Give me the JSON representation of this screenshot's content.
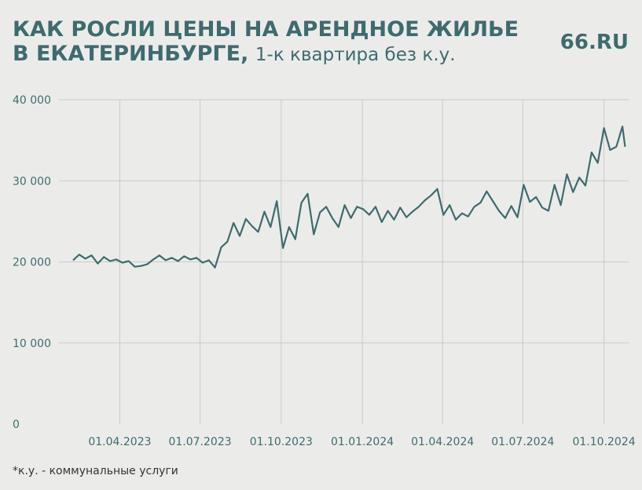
{
  "chart_data": {
    "type": "line",
    "title": [
      "КАК РОСЛИ ЦЕНЫ НА АРЕНДНОЕ ЖИЛЬЕ",
      "В ЕКАТЕРИНБУРГЕ,"
    ],
    "subtitle": "1-к квартира без к.у.",
    "brand": "66.RU",
    "footnote": "*к.у. - коммунальные услуги",
    "color": "#3e6b6e",
    "grid": true,
    "x": [
      "07.02.2023",
      "14.02.2023",
      "21.02.2023",
      "28.02.2023",
      "07.03.2023",
      "14.03.2023",
      "21.03.2023",
      "28.03.2023",
      "04.04.2023",
      "11.04.2023",
      "18.04.2023",
      "25.04.2023",
      "02.05.2023",
      "09.05.2023",
      "16.05.2023",
      "23.05.2023",
      "30.05.2023",
      "06.06.2023",
      "13.06.2023",
      "20.06.2023",
      "27.06.2023",
      "04.07.2023",
      "11.07.2023",
      "18.07.2023",
      "25.07.2023",
      "01.08.2023",
      "08.08.2023",
      "15.08.2023",
      "22.08.2023",
      "29.08.2023",
      "05.09.2023",
      "12.09.2023",
      "19.09.2023",
      "26.09.2023",
      "03.10.2023",
      "10.10.2023",
      "17.10.2023",
      "24.10.2023",
      "31.10.2023",
      "07.11.2023",
      "14.11.2023",
      "21.11.2023",
      "28.11.2023",
      "05.12.2023",
      "12.12.2023",
      "19.12.2023",
      "26.12.2023",
      "02.01.2024",
      "09.01.2024",
      "16.01.2024",
      "23.01.2024",
      "30.01.2024",
      "06.02.2024",
      "13.02.2024",
      "20.02.2024",
      "27.02.2024",
      "05.03.2024",
      "12.03.2024",
      "19.03.2024",
      "26.03.2024",
      "02.04.2024",
      "09.04.2024",
      "16.04.2024",
      "23.04.2024",
      "30.04.2024",
      "07.05.2024",
      "14.05.2024",
      "21.05.2024",
      "28.05.2024",
      "04.06.2024",
      "11.06.2024",
      "18.06.2024",
      "25.06.2024",
      "02.07.2024",
      "09.07.2024",
      "16.07.2024",
      "23.07.2024",
      "30.07.2024",
      "06.08.2024",
      "13.08.2024",
      "20.08.2024",
      "27.08.2024",
      "03.09.2024",
      "10.09.2024",
      "17.09.2024",
      "24.09.2024",
      "01.10.2024",
      "08.10.2024",
      "15.10.2024",
      "22.10.2024",
      "25.10.2024"
    ],
    "values": [
      20200,
      20900,
      20400,
      20800,
      19800,
      20600,
      20100,
      20300,
      19900,
      20100,
      19400,
      19500,
      19700,
      20300,
      20800,
      20200,
      20500,
      20100,
      20700,
      20300,
      20500,
      19900,
      20200,
      19300,
      21800,
      22500,
      24800,
      23200,
      25300,
      24400,
      23700,
      26200,
      24300,
      27500,
      21700,
      24300,
      22800,
      27300,
      28400,
      23400,
      26100,
      26800,
      25400,
      24300,
      27000,
      25400,
      26800,
      26500,
      25800,
      26800,
      24900,
      26300,
      25200,
      26700,
      25500,
      26200,
      26800,
      27600,
      28200,
      29000,
      25800,
      27000,
      25200,
      26000,
      25600,
      26800,
      27300,
      28700,
      27500,
      26300,
      25400,
      26900,
      25500,
      29500,
      27400,
      28000,
      26700,
      26300,
      29500,
      27000,
      30800,
      28600,
      30400,
      29400,
      33500,
      32200,
      36500,
      33800,
      34200,
      36700,
      34200
    ],
    "xlim": [
      "22.01.2023",
      "29.10.2024"
    ],
    "xticks": [
      "01.04.2023",
      "01.07.2023",
      "01.10.2023",
      "01.01.2024",
      "01.04.2024",
      "01.07.2024",
      "01.10.2024"
    ],
    "ylim": [
      0,
      40000
    ],
    "yticks": [
      0,
      {
        "value": 10000,
        "label": "10 000"
      },
      {
        "value": 20000,
        "label": "20 000"
      },
      {
        "value": 30000,
        "label": "30 000"
      },
      {
        "value": 40000,
        "label": "40 000"
      }
    ]
  }
}
